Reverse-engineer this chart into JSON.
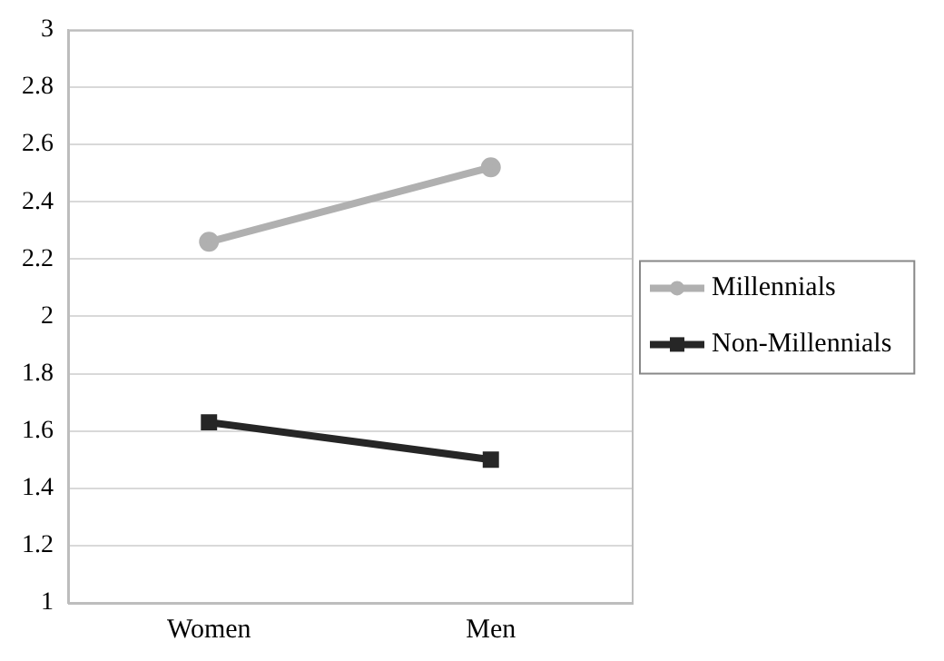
{
  "chart_data": {
    "type": "line",
    "categories": [
      "Women",
      "Men"
    ],
    "series": [
      {
        "name": "Millennials",
        "color": "#b0b0b0",
        "values": [
          2.26,
          2.52
        ],
        "marker": "circle"
      },
      {
        "name": "Non-Millennials",
        "color": "#262626",
        "values": [
          1.63,
          1.5
        ],
        "marker": "square"
      }
    ],
    "ylim": [
      1,
      3
    ],
    "yticks": [
      1,
      1.2,
      1.4,
      1.6,
      1.8,
      2,
      2.2,
      2.4,
      2.6,
      2.8,
      3
    ],
    "grid": "y",
    "legend": "right",
    "line_style": "solid"
  }
}
